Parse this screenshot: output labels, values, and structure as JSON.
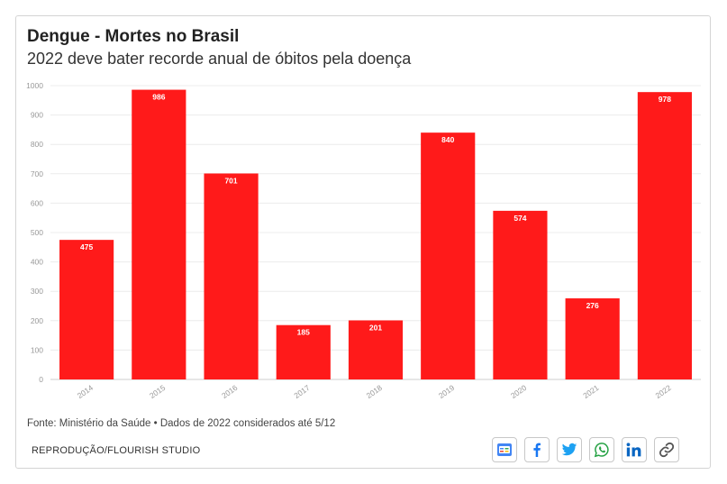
{
  "card": {
    "title": "Dengue - Mortes no Brasil",
    "subtitle": "2022 deve bater recorde anual de óbitos pela doença",
    "source": "Fonte: Ministério da Saúde • Dados de 2022 considerados até 5/12",
    "credit": "REPRODUÇÃO/FLOURISH STUDIO"
  },
  "share_icons": [
    "google-news-icon",
    "facebook-icon",
    "twitter-icon",
    "whatsapp-icon",
    "linkedin-icon",
    "link-icon"
  ],
  "colors": {
    "bar": "#ff1a1a",
    "facebook": "#1877f2",
    "twitter": "#1da1f2",
    "whatsapp": "#25a244",
    "linkedin": "#0a66c2"
  },
  "chart_data": {
    "type": "bar",
    "categories": [
      "2014",
      "2015",
      "2016",
      "2017",
      "2018",
      "2019",
      "2020",
      "2021",
      "2022"
    ],
    "values": [
      475,
      986,
      701,
      185,
      201,
      840,
      574,
      276,
      978
    ],
    "ylim": [
      0,
      1000
    ],
    "yticks": [
      0,
      100,
      200,
      300,
      400,
      500,
      600,
      700,
      800,
      900,
      1000
    ],
    "grid": true,
    "data_labels": true
  }
}
